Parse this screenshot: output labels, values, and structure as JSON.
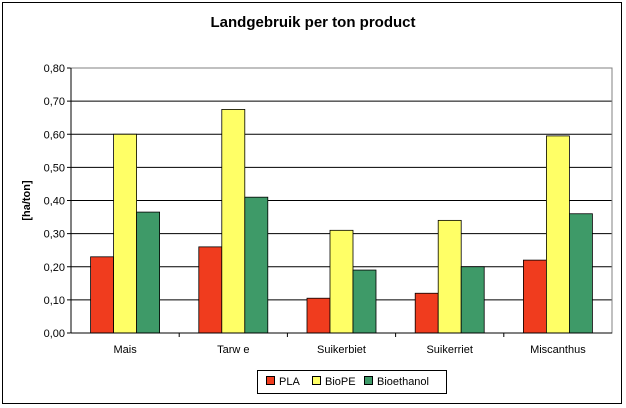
{
  "chart_data": {
    "type": "bar",
    "title": "Landgebruik per ton product",
    "xlabel": "",
    "ylabel": "[ha/ton]",
    "ylim": [
      0,
      0.8
    ],
    "yticks": [
      "0,00",
      "0,10",
      "0,20",
      "0,30",
      "0,40",
      "0,50",
      "0,60",
      "0,70",
      "0,80"
    ],
    "categories": [
      "Mais",
      "Tarw e",
      "Suikerbiet",
      "Suikerriet",
      "Miscanthus"
    ],
    "series": [
      {
        "name": "PLA",
        "color": "#f03c1e",
        "values": [
          0.23,
          0.26,
          0.105,
          0.12,
          0.22
        ]
      },
      {
        "name": "BioPE",
        "color": "#ffff66",
        "values": [
          0.6,
          0.675,
          0.31,
          0.34,
          0.595
        ]
      },
      {
        "name": "Bioethanol",
        "color": "#3e9a68",
        "values": [
          0.365,
          0.41,
          0.19,
          0.2,
          0.36
        ]
      }
    ],
    "grid": true,
    "legend_position": "bottom"
  }
}
